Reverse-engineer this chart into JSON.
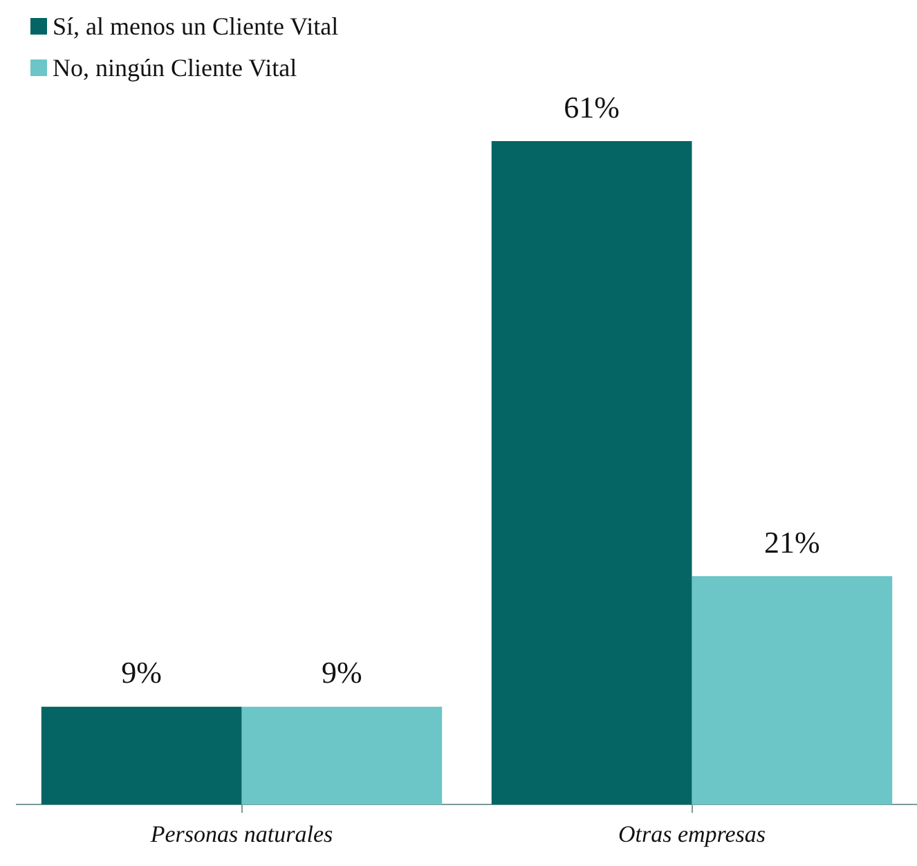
{
  "chart_data": {
    "type": "bar",
    "categories": [
      "Personas naturales",
      "Otras empresas"
    ],
    "series": [
      {
        "name": "Sí, al menos un Cliente Vital",
        "color": "#046564",
        "values": [
          9,
          61
        ],
        "value_labels": [
          "9%",
          "61%"
        ]
      },
      {
        "name": "No, ningún Cliente Vital",
        "color": "#6cc5c6",
        "values": [
          9,
          21
        ],
        "value_labels": [
          "9%",
          "21%"
        ]
      }
    ],
    "ylim": [
      0,
      61
    ],
    "tick_labels": "x",
    "grid": false,
    "legend": "top left"
  }
}
